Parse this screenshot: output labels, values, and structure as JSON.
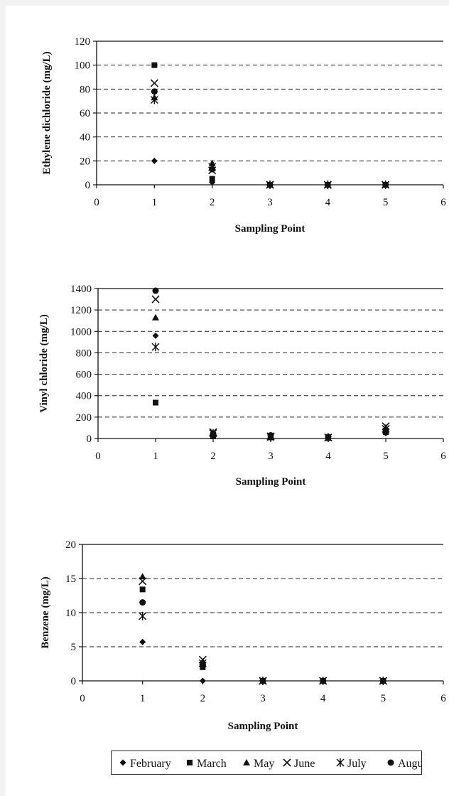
{
  "chart_data": [
    {
      "type": "scatter",
      "xlabel": "Sampling Point",
      "ylabel": "Ethylene dichloride (mg/L)",
      "xlim": [
        0,
        6
      ],
      "ylim": [
        0,
        120
      ],
      "xticks": [
        "0",
        "1",
        "2",
        "3",
        "4",
        "5",
        "6"
      ],
      "yticks": [
        "0",
        "20",
        "40",
        "60",
        "80",
        "100",
        "120"
      ],
      "ytick_values": [
        0,
        20,
        40,
        60,
        80,
        100,
        120
      ],
      "grid": "horizontal-dashed",
      "series": [
        {
          "name": "February",
          "x": [
            1,
            2,
            3,
            4,
            5
          ],
          "y": [
            20,
            2,
            0,
            0,
            0
          ]
        },
        {
          "name": "March",
          "x": [
            1,
            2,
            3,
            4,
            5
          ],
          "y": [
            100,
            5,
            0,
            0,
            0
          ]
        },
        {
          "name": "May",
          "x": [
            1,
            2,
            3,
            4,
            5
          ],
          "y": [
            73,
            18,
            0,
            0,
            0
          ]
        },
        {
          "name": "June",
          "x": [
            1,
            2,
            3,
            4,
            5
          ],
          "y": [
            85,
            12,
            0,
            0,
            0
          ]
        },
        {
          "name": "July",
          "x": [
            1,
            2,
            3,
            4,
            5
          ],
          "y": [
            71,
            15,
            0,
            0,
            0
          ]
        },
        {
          "name": "August",
          "x": [
            1,
            2,
            3,
            4,
            5
          ],
          "y": [
            78,
            13,
            0,
            0,
            0
          ]
        }
      ]
    },
    {
      "type": "scatter",
      "xlabel": "Sampling Point",
      "ylabel": "Vinyl chloride (mg/L)",
      "xlim": [
        0,
        6
      ],
      "ylim": [
        0,
        1400
      ],
      "xticks": [
        "0",
        "1",
        "2",
        "3",
        "4",
        "5",
        "6"
      ],
      "yticks": [
        "0",
        "200",
        "400",
        "600",
        "800",
        "1000",
        "1200",
        "1400"
      ],
      "ytick_values": [
        0,
        200,
        400,
        600,
        800,
        1000,
        1200,
        1400
      ],
      "grid": "horizontal-dashed",
      "series": [
        {
          "name": "February",
          "x": [
            1,
            2,
            3,
            4,
            5
          ],
          "y": [
            960,
            30,
            10,
            5,
            50
          ]
        },
        {
          "name": "March",
          "x": [
            1,
            2,
            3,
            4,
            5
          ],
          "y": [
            335,
            20,
            10,
            5,
            60
          ]
        },
        {
          "name": "May",
          "x": [
            1,
            2,
            3,
            4,
            5
          ],
          "y": [
            1130,
            40,
            15,
            5,
            70
          ]
        },
        {
          "name": "June",
          "x": [
            1,
            2,
            3,
            4,
            5
          ],
          "y": [
            1300,
            60,
            20,
            10,
            115
          ]
        },
        {
          "name": "July",
          "x": [
            1,
            2,
            3,
            4,
            5
          ],
          "y": [
            855,
            50,
            15,
            10,
            90
          ]
        },
        {
          "name": "August",
          "x": [
            1,
            2,
            3,
            4,
            5
          ],
          "y": [
            1380,
            45,
            30,
            15,
            80
          ]
        }
      ]
    },
    {
      "type": "scatter",
      "xlabel": "Sampling Point",
      "ylabel": "Benzene (mg/L)",
      "xlim": [
        0,
        6
      ],
      "ylim": [
        0,
        20
      ],
      "xticks": [
        "0",
        "1",
        "2",
        "3",
        "4",
        "5",
        "6"
      ],
      "yticks": [
        "0",
        "5",
        "10",
        "15",
        "20"
      ],
      "ytick_values": [
        0,
        5,
        10,
        15,
        20
      ],
      "grid": "horizontal-dashed",
      "series": [
        {
          "name": "February",
          "x": [
            1,
            2,
            3,
            4,
            5
          ],
          "y": [
            5.7,
            0,
            0,
            0,
            0
          ]
        },
        {
          "name": "March",
          "x": [
            1,
            2,
            3,
            4,
            5
          ],
          "y": [
            13.4,
            2,
            0,
            0,
            0
          ]
        },
        {
          "name": "May",
          "x": [
            1,
            2,
            3,
            4,
            5
          ],
          "y": [
            15.3,
            2.8,
            0,
            0,
            0
          ]
        },
        {
          "name": "June",
          "x": [
            1,
            2,
            3,
            4,
            5
          ],
          "y": [
            14.6,
            3.1,
            0,
            0,
            0
          ]
        },
        {
          "name": "July",
          "x": [
            1,
            2,
            3,
            4,
            5
          ],
          "y": [
            9.5,
            2.6,
            0,
            0,
            0
          ]
        },
        {
          "name": "August",
          "x": [
            1,
            2,
            3,
            4,
            5
          ],
          "y": [
            11.5,
            2.3,
            0,
            0,
            0
          ]
        }
      ]
    }
  ],
  "legend": {
    "placement": "bottom-center",
    "entries": [
      {
        "name": "February",
        "marker": "diamond"
      },
      {
        "name": "March",
        "marker": "square"
      },
      {
        "name": "May",
        "marker": "triangle"
      },
      {
        "name": "June",
        "marker": "x"
      },
      {
        "name": "July",
        "marker": "asterisk"
      },
      {
        "name": "August",
        "marker": "circle"
      }
    ]
  },
  "colors": {
    "ink": "#111111",
    "grid": "#222222",
    "background": "#ffffff"
  }
}
